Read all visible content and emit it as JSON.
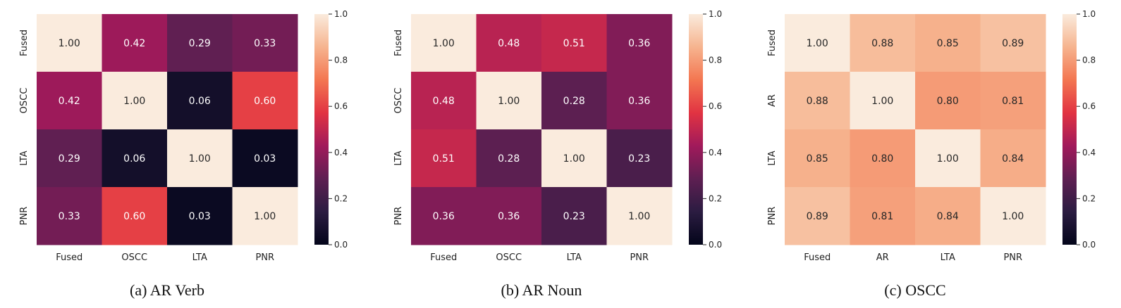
{
  "chart_data": [
    {
      "type": "heatmap",
      "caption": "(a) AR Verb",
      "x_labels": [
        "Fused",
        "OSCC",
        "LTA",
        "PNR"
      ],
      "y_labels": [
        "Fused",
        "OSCC",
        "LTA",
        "PNR"
      ],
      "values": [
        [
          1.0,
          0.42,
          0.29,
          0.33
        ],
        [
          0.42,
          1.0,
          0.06,
          0.6
        ],
        [
          0.29,
          0.06,
          1.0,
          0.03
        ],
        [
          0.33,
          0.6,
          0.03,
          1.0
        ]
      ],
      "value_labels": [
        [
          "1.00",
          "0.42",
          "0.29",
          "0.33"
        ],
        [
          "0.42",
          "1.00",
          "0.06",
          "0.60"
        ],
        [
          "0.29",
          "0.06",
          "1.00",
          "0.03"
        ],
        [
          "0.33",
          "0.60",
          "0.03",
          "1.00"
        ]
      ],
      "colorbar": {
        "range": [
          0.0,
          1.0
        ],
        "ticks": [
          "0.0",
          "0.2",
          "0.4",
          "0.6",
          "0.8",
          "1.0"
        ]
      }
    },
    {
      "type": "heatmap",
      "caption": "(b) AR Noun",
      "x_labels": [
        "Fused",
        "OSCC",
        "LTA",
        "PNR"
      ],
      "y_labels": [
        "Fused",
        "OSCC",
        "LTA",
        "PNR"
      ],
      "values": [
        [
          1.0,
          0.48,
          0.51,
          0.36
        ],
        [
          0.48,
          1.0,
          0.28,
          0.36
        ],
        [
          0.51,
          0.28,
          1.0,
          0.23
        ],
        [
          0.36,
          0.36,
          0.23,
          1.0
        ]
      ],
      "value_labels": [
        [
          "1.00",
          "0.48",
          "0.51",
          "0.36"
        ],
        [
          "0.48",
          "1.00",
          "0.28",
          "0.36"
        ],
        [
          "0.51",
          "0.28",
          "1.00",
          "0.23"
        ],
        [
          "0.36",
          "0.36",
          "0.23",
          "1.00"
        ]
      ],
      "colorbar": {
        "range": [
          0.0,
          1.0
        ],
        "ticks": [
          "0.0",
          "0.2",
          "0.4",
          "0.6",
          "0.8",
          "1.0"
        ]
      }
    },
    {
      "type": "heatmap",
      "caption": "(c) OSCC",
      "x_labels": [
        "Fused",
        "AR",
        "LTA",
        "PNR"
      ],
      "y_labels": [
        "Fused",
        "AR",
        "LTA",
        "PNR"
      ],
      "values": [
        [
          1.0,
          0.88,
          0.85,
          0.89
        ],
        [
          0.88,
          1.0,
          0.8,
          0.81
        ],
        [
          0.85,
          0.8,
          1.0,
          0.84
        ],
        [
          0.89,
          0.81,
          0.84,
          1.0
        ]
      ],
      "value_labels": [
        [
          "1.00",
          "0.88",
          "0.85",
          "0.89"
        ],
        [
          "0.88",
          "1.00",
          "0.80",
          "0.81"
        ],
        [
          "0.85",
          "0.80",
          "1.00",
          "0.84"
        ],
        [
          "0.89",
          "0.81",
          "0.84",
          "1.00"
        ]
      ],
      "colorbar": {
        "range": [
          0.0,
          1.0
        ],
        "ticks": [
          "0.0",
          "0.2",
          "0.4",
          "0.6",
          "0.8",
          "1.0"
        ]
      }
    }
  ],
  "colormap": {
    "name": "rocket",
    "stops": [
      "#03051a",
      "#2b1c41",
      "#5e1f52",
      "#a11a5b",
      "#e13342",
      "#f37651",
      "#f6b48f",
      "#faebdd"
    ]
  }
}
